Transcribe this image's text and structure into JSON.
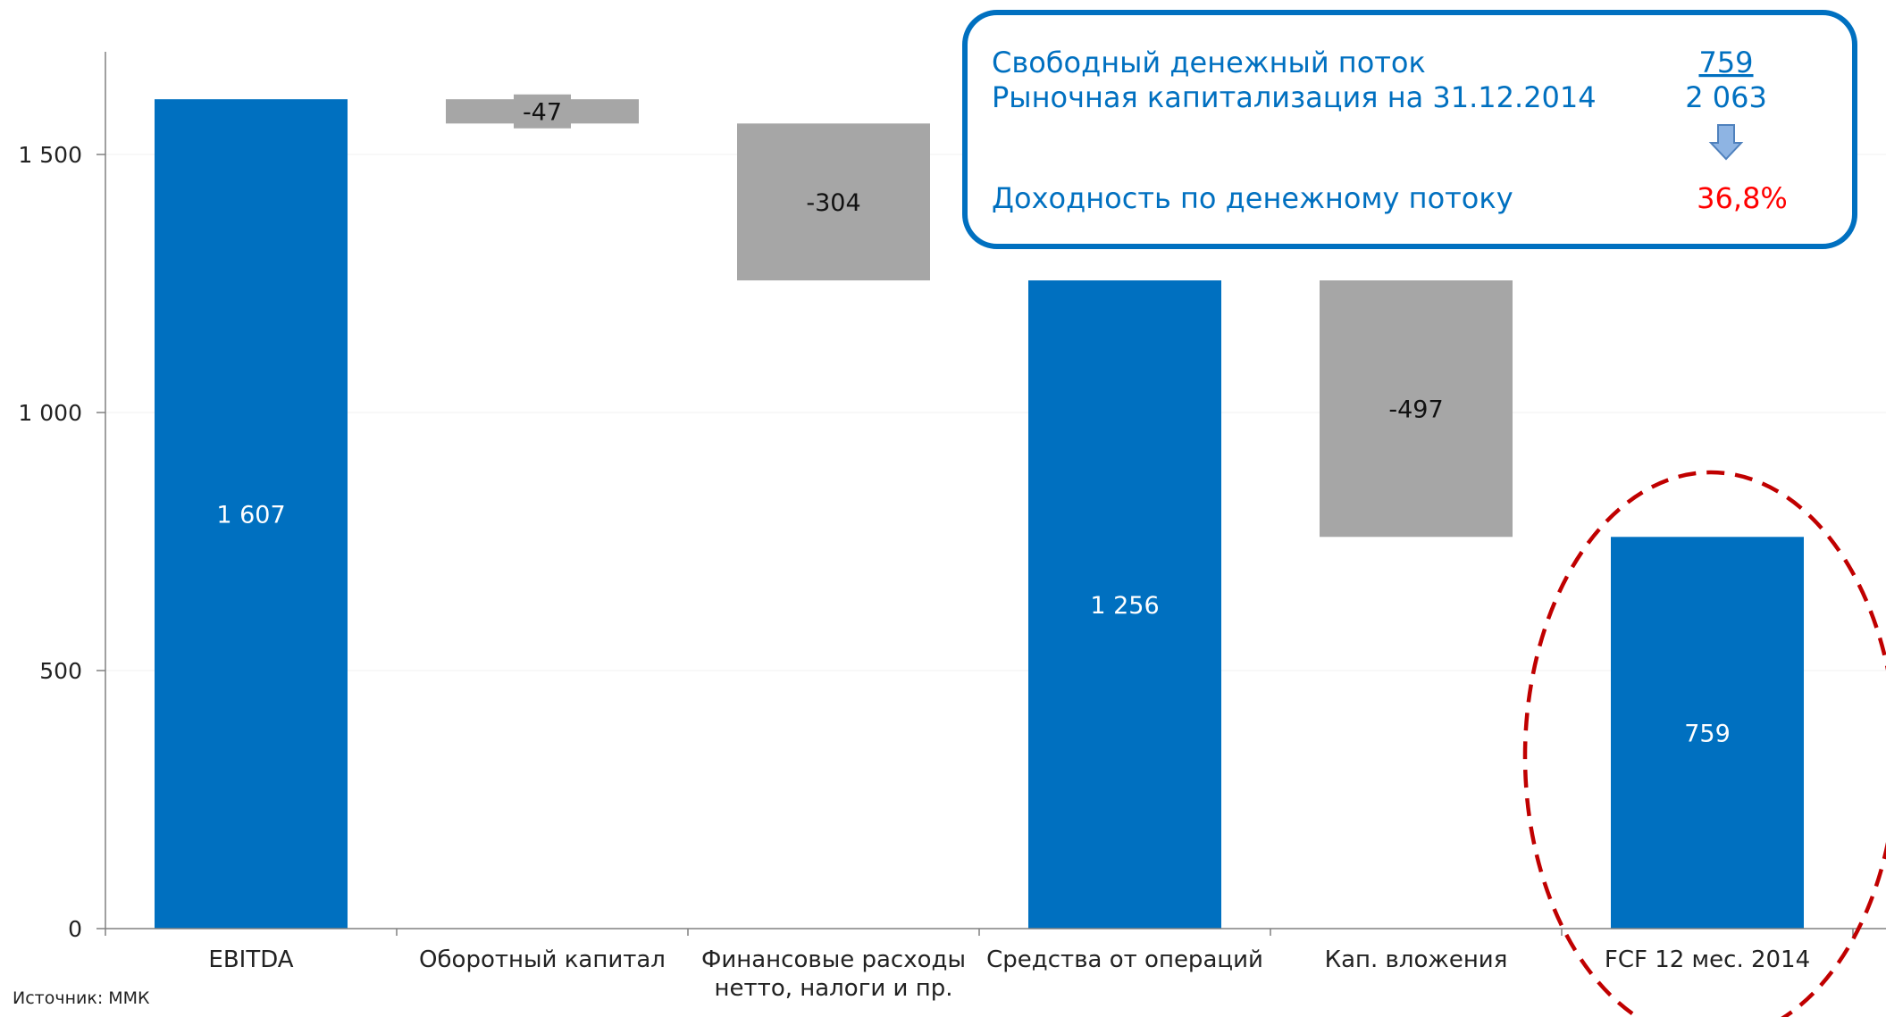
{
  "chart_data": {
    "type": "bar",
    "subtype": "waterfall",
    "categories": [
      [
        "EBITDA"
      ],
      [
        "Оборотный капитал"
      ],
      [
        "Финансовые расходы",
        "нетто, налоги и пр."
      ],
      [
        "Средства от операций"
      ],
      [
        "Кап. вложения"
      ],
      [
        "FCF 12 мес. 2014"
      ]
    ],
    "bars": [
      {
        "kind": "total",
        "start": 0,
        "end": 1607,
        "label": "1 607"
      },
      {
        "kind": "change",
        "start": 1607,
        "end": 1560,
        "label": "-47"
      },
      {
        "kind": "change",
        "start": 1560,
        "end": 1256,
        "label": "-304"
      },
      {
        "kind": "total",
        "start": 0,
        "end": 1256,
        "label": "1 256"
      },
      {
        "kind": "change",
        "start": 1256,
        "end": 759,
        "label": "-497"
      },
      {
        "kind": "total",
        "start": 0,
        "end": 759,
        "label": "759"
      }
    ],
    "yticks": [
      0,
      500,
      1000,
      1500
    ],
    "ytick_labels": [
      "0",
      "500",
      "1 000",
      "1 500"
    ],
    "ylim": [
      0,
      1700
    ],
    "grid": true,
    "colors": {
      "total": "#0070C0",
      "change": "#A6A6A6",
      "axis": "#808080",
      "grid": "#F2F2F2"
    },
    "source": "Источник: ММК",
    "highlight": {
      "category_index": 5,
      "style": "dashed-ellipse",
      "color": "#C00000"
    }
  },
  "info_box": {
    "border_color": "#0070C0",
    "rows": [
      {
        "label": "Свободный денежный поток",
        "value": "759",
        "underline": true
      },
      {
        "label": "Рыночная капитализация на 31.12.2014",
        "value": "2 063"
      },
      {
        "label": "Доходность по денежному потоку",
        "value": "36,8%",
        "value_color": "#FF0000"
      }
    ],
    "arrow": "down-arrow-icon",
    "text_color": "#0070C0"
  }
}
